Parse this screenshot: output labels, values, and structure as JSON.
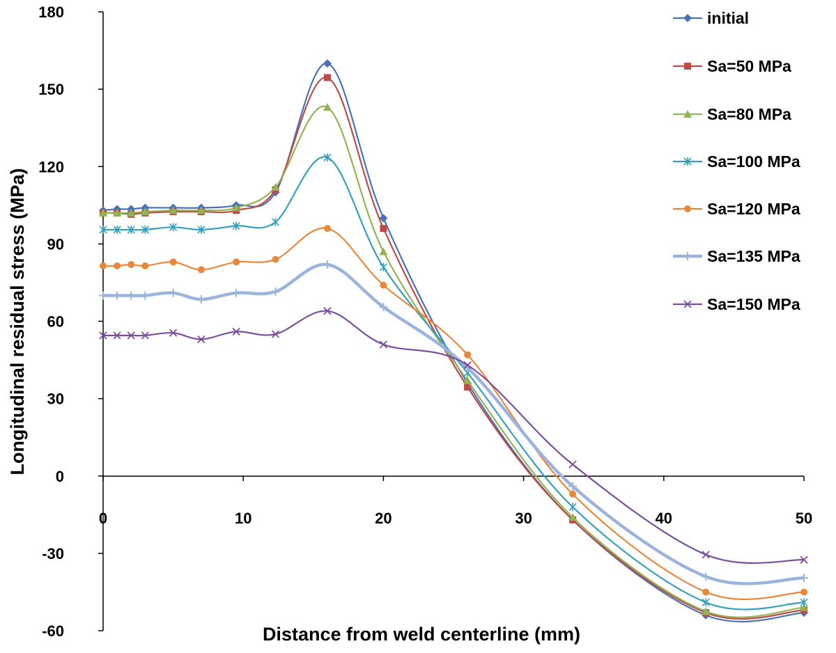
{
  "chart_data": {
    "type": "line",
    "title": "",
    "xlabel": "Distance from weld centerline (mm)",
    "ylabel": "Longitudinal residual stress (MPa)",
    "xlim": [
      0,
      50
    ],
    "ylim": [
      -60,
      180
    ],
    "xticks": [
      "0",
      "10",
      "20",
      "30",
      "40",
      "50"
    ],
    "yticks": [
      "180",
      "150",
      "120",
      "90",
      "60",
      "30",
      "0",
      "-30",
      "-60"
    ],
    "grid": false,
    "legend": "right",
    "x": [
      0,
      1,
      2,
      3,
      5,
      7,
      9.5,
      12.3,
      16,
      20,
      26,
      33.5,
      43,
      50
    ],
    "series": [
      {
        "name": "initial",
        "color": "#4a72b8",
        "marker": "diamond",
        "values": [
          103,
          103.5,
          103.5,
          104,
          104,
          104,
          105,
          110,
          160,
          100,
          36,
          -17,
          -54,
          -53
        ]
      },
      {
        "name": "Sa=50 MPa",
        "color": "#be4b48",
        "marker": "square",
        "values": [
          102,
          102,
          101.5,
          102,
          102.5,
          102.5,
          103,
          111,
          154.5,
          96,
          34.5,
          -17,
          -53,
          -52
        ]
      },
      {
        "name": "Sa=80 MPa",
        "color": "#93b454",
        "marker": "triangle",
        "values": [
          102,
          102,
          102,
          102.5,
          103,
          103,
          104,
          112,
          143,
          87,
          37,
          -16,
          -52.5,
          -51
        ]
      },
      {
        "name": "Sa=100 MPa",
        "color": "#35a0bc",
        "marker": "asterisk",
        "values": [
          95.5,
          95.5,
          95.5,
          95.5,
          96.5,
          95.5,
          97,
          98.5,
          123.5,
          81,
          40,
          -12,
          -49,
          -49
        ]
      },
      {
        "name": "Sa=120 MPa",
        "color": "#e9873a",
        "marker": "circle",
        "values": [
          81.5,
          81.5,
          82,
          81.5,
          83,
          80,
          83,
          84,
          96,
          74,
          47,
          -7,
          -45,
          -45
        ]
      },
      {
        "name": "Sa=135 MPa",
        "color": "#9cb3dc",
        "marker": "plus",
        "values": [
          70,
          70,
          70,
          70,
          71,
          68.5,
          71,
          71.5,
          82,
          65.5,
          42,
          -4,
          -39,
          -39.5
        ]
      },
      {
        "name": "Sa=150 MPa",
        "color": "#7a4e9a",
        "marker": "x",
        "values": [
          54.5,
          54.5,
          54.5,
          54.5,
          55.5,
          53,
          56,
          55,
          64,
          51,
          43,
          4.5,
          -30.5,
          -32.5
        ]
      }
    ]
  }
}
